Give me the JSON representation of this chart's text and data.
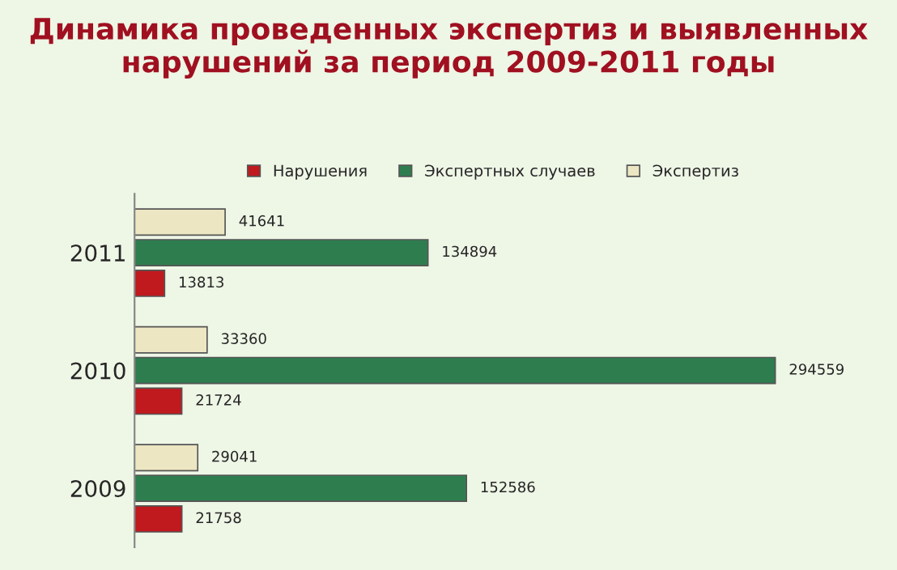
{
  "chart_data": {
    "type": "bar",
    "orientation": "horizontal",
    "title": "Динамика проведенных экспертиз и выявленных нарушений за период 2009-2011 годы",
    "categories": [
      "2011",
      "2010",
      "2009"
    ],
    "series": [
      {
        "name": "Нарушения",
        "color": "#c0191e",
        "values": [
          13813,
          21724,
          21758
        ]
      },
      {
        "name": "Экспертных случаев",
        "color": "#2e7d4f",
        "values": [
          134894,
          294559,
          152586
        ]
      },
      {
        "name": "Экспертиз",
        "color": "#ece6c2",
        "values": [
          41641,
          33360,
          29041
        ]
      }
    ],
    "data_labels": true,
    "legend": "top",
    "grid": false
  }
}
